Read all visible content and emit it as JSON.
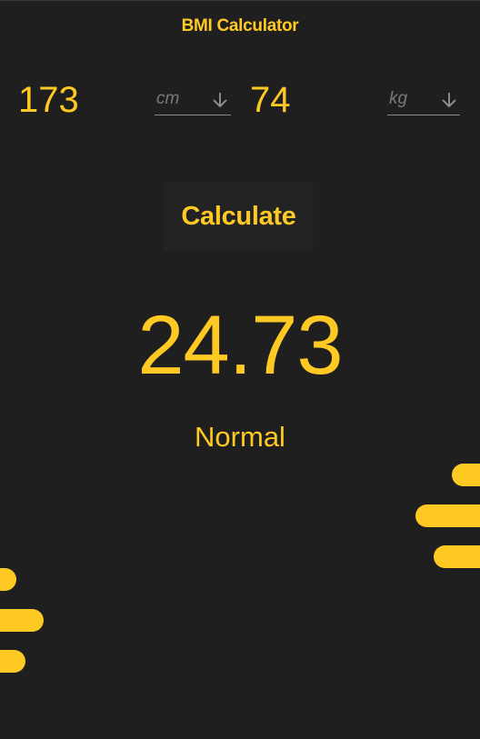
{
  "header": {
    "title": "BMI Calculator"
  },
  "inputs": {
    "height": {
      "value": "173",
      "unit": "cm"
    },
    "weight": {
      "value": "74",
      "unit": "kg"
    }
  },
  "actions": {
    "calculate_label": "Calculate"
  },
  "result": {
    "bmi": "24.73",
    "category": "Normal"
  },
  "theme": {
    "accent": "#ffc924",
    "background": "#1f1f1f",
    "muted": "#7a7a7a"
  },
  "icons": {
    "dropdown": "arrow-down-icon"
  }
}
